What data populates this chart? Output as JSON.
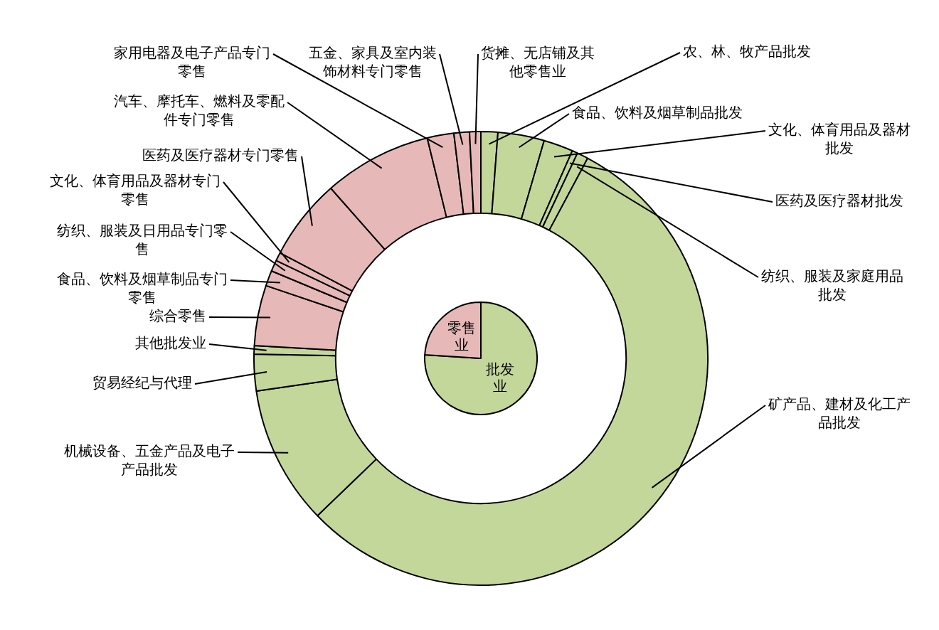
{
  "chart_data": [
    {
      "type": "donut",
      "categories": [
        "农、林、牧产品批发",
        "食品、饮料及烟草制品批发",
        "文化、体育用品及器材批发",
        "医药及医疗器材批发",
        "纺织、服装及家庭用品批发",
        "矿产品、建材及化工产品批发",
        "机械设备、五金产品及电子产品批发",
        "贸易经纪与代理",
        "其他批发业",
        "综合零售",
        "食品、饮料及烟草制品专门零售",
        "纺织、服装及日用品专门零售",
        "文化、体育用品及器材专门零售",
        "医药及医疗器材专门零售",
        "汽车、摩托车、燃料及零配件专门零售",
        "家用电器及电子产品专门零售",
        "五金、家具及室内装饰材料专门零售",
        "货摊、无店铺及其他零售业"
      ],
      "values": [
        1.2,
        3.3,
        2.1,
        0.4,
        0.8,
        55.0,
        9.9,
        2.6,
        0.6,
        4.3,
        1.1,
        0.8,
        0.6,
        5.8,
        7.7,
        1.9,
        1.1,
        0.8
      ],
      "colors": [
        "#c4d79b",
        "#c4d79b",
        "#c4d79b",
        "#c4d79b",
        "#c4d79b",
        "#c4d79b",
        "#c4d79b",
        "#c4d79b",
        "#c4d79b",
        "#e6b9b8",
        "#e6b9b8",
        "#e6b9b8",
        "#e6b9b8",
        "#e6b9b8",
        "#e6b9b8",
        "#e6b9b8",
        "#e6b9b8",
        "#e6b9b8"
      ]
    },
    {
      "type": "pie",
      "categories": [
        "批发业",
        "零售业"
      ],
      "values": [
        76,
        24
      ],
      "colors": [
        "#c4d79b",
        "#e6b9b8"
      ]
    }
  ]
}
